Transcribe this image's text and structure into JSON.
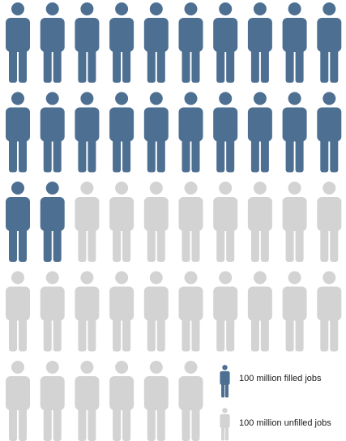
{
  "chart_data": {
    "type": "pictograph",
    "unit_value": 100,
    "unit_label": "million",
    "series": [
      {
        "name": "filled jobs",
        "count": 22,
        "color": "#4d6f92"
      },
      {
        "name": "unfilled jobs",
        "count": 24,
        "color": "#d3d3d3"
      }
    ],
    "total_icons": 46,
    "legend": [
      {
        "label": "100 million filled jobs",
        "color": "#4d6f92"
      },
      {
        "label": "100 million unfilled jobs",
        "color": "#d3d3d3"
      }
    ]
  }
}
